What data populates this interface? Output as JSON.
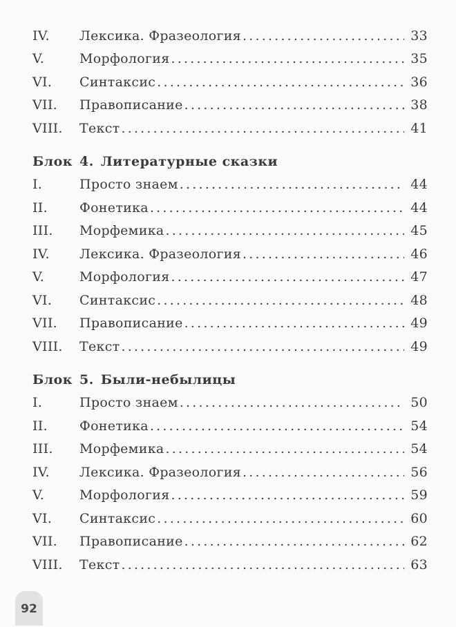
{
  "sections": [
    {
      "heading": null,
      "items": [
        {
          "num": "IV.",
          "title": "Лексика. Фразеология",
          "page": "33"
        },
        {
          "num": "V.",
          "title": "Морфология",
          "page": "35"
        },
        {
          "num": "VI.",
          "title": "Синтаксис",
          "page": "36"
        },
        {
          "num": "VII.",
          "title": "Правописание",
          "page": "38"
        },
        {
          "num": "VIII.",
          "title": "Текст",
          "page": "41"
        }
      ]
    },
    {
      "heading": {
        "label": "Блок",
        "number": "4.",
        "title": "Литературные сказки"
      },
      "items": [
        {
          "num": "I.",
          "title": "Просто знаем",
          "page": "44"
        },
        {
          "num": "II.",
          "title": "Фонетика",
          "page": "44"
        },
        {
          "num": "III.",
          "title": "Морфемика",
          "page": "45"
        },
        {
          "num": "IV.",
          "title": "Лексика. Фразеология",
          "page": "46"
        },
        {
          "num": "V.",
          "title": "Морфология",
          "page": "47"
        },
        {
          "num": "VI.",
          "title": "Синтаксис",
          "page": "48"
        },
        {
          "num": "VII.",
          "title": "Правописание",
          "page": "49"
        },
        {
          "num": "VIII.",
          "title": "Текст",
          "page": "49"
        }
      ]
    },
    {
      "heading": {
        "label": "Блок",
        "number": "5.",
        "title": "Были-небылицы"
      },
      "items": [
        {
          "num": "I.",
          "title": "Просто знаем",
          "page": "50"
        },
        {
          "num": "II.",
          "title": "Фонетика",
          "page": "54"
        },
        {
          "num": "III.",
          "title": "Морфемика",
          "page": "54"
        },
        {
          "num": "IV.",
          "title": "Лексика. Фразеология",
          "page": "56"
        },
        {
          "num": "V.",
          "title": "Морфология",
          "page": "59"
        },
        {
          "num": "VI.",
          "title": "Синтаксис",
          "page": "60"
        },
        {
          "num": "VII.",
          "title": "Правописание",
          "page": "62"
        },
        {
          "num": "VIII.",
          "title": "Текст",
          "page": "63"
        }
      ]
    }
  ],
  "page_number": "92"
}
